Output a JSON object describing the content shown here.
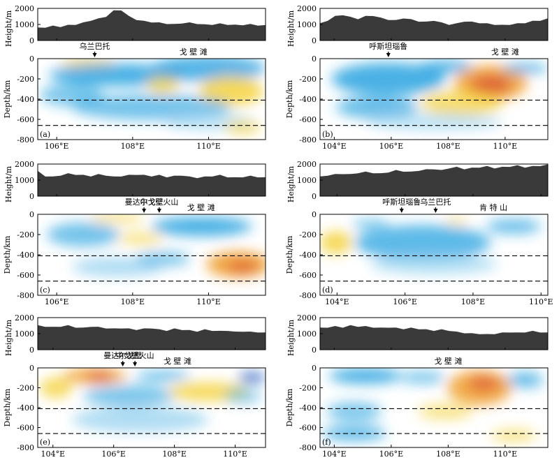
{
  "figure": {
    "height_label": "Height/m",
    "depth_label": "Depth/km",
    "height_ticks": [
      "2000",
      "1000",
      "0"
    ],
    "depth_ticks": [
      "0",
      "-200",
      "-400",
      "-600",
      "-800"
    ]
  },
  "chart_data": [
    {
      "type": "heatmap",
      "panel": "(a)",
      "xlabel": "",
      "x_ticks": [
        "106°E",
        "108°E",
        "110°E"
      ],
      "x_range": [
        105.5,
        111.5
      ],
      "height_range_m": [
        0,
        2000
      ],
      "depth_range_km": [
        0,
        -800
      ],
      "reference_depths_km": [
        -410,
        -660
      ],
      "annotations": [
        {
          "text": "乌兰巴托",
          "x": 107.0,
          "arrow": true
        },
        {
          "text": "戈 壁 滩",
          "x": 109.6,
          "arrow": false
        }
      ],
      "topography_m": [
        780,
        820,
        900,
        860,
        950,
        1000,
        1100,
        1250,
        1350,
        1500,
        1850,
        1900,
        1500,
        1300,
        1200,
        1150,
        1100,
        1050,
        1000,
        1080,
        1100,
        1050,
        980,
        1000,
        1040,
        1000,
        960,
        980,
        1000,
        950,
        930
      ]
    },
    {
      "type": "heatmap",
      "panel": "(b)",
      "x_ticks": [
        "104°E",
        "106°E",
        "108°E",
        "110°E"
      ],
      "x_range": [
        103.5,
        111.5
      ],
      "height_range_m": [
        0,
        2000
      ],
      "depth_range_km": [
        0,
        -800
      ],
      "reference_depths_km": [
        -410,
        -660
      ],
      "annotations": [
        {
          "text": "呼斯坦瑙鲁",
          "x": 105.9,
          "arrow": true
        },
        {
          "text": "戈 壁 滩",
          "x": 110.0,
          "arrow": false
        }
      ],
      "topography_m": [
        1050,
        1250,
        1500,
        1600,
        1450,
        1350,
        1500,
        1550,
        1400,
        1300,
        1250,
        1400,
        1300,
        1200,
        1150,
        1250,
        1100,
        1000,
        1050,
        1200,
        1150,
        1100,
        1050,
        1000,
        950,
        1000,
        1050,
        1100,
        1200,
        1250,
        1350
      ]
    },
    {
      "type": "heatmap",
      "panel": "(c)",
      "x_ticks": [
        "106°E",
        "108°E",
        "110°E"
      ],
      "x_range": [
        105.5,
        111.5
      ],
      "height_range_m": [
        0,
        2000
      ],
      "depth_range_km": [
        0,
        -800
      ],
      "reference_depths_km": [
        -410,
        -660
      ],
      "annotations": [
        {
          "text": "曼达尔戈壁",
          "x": 108.3,
          "arrow": true
        },
        {
          "text": "中戈壁火山",
          "x": 108.7,
          "arrow": true
        },
        {
          "text": "戈 壁 滩",
          "x": 109.8,
          "arrow": false
        }
      ],
      "topography_m": [
        1550,
        1250,
        1200,
        1300,
        1400,
        1350,
        1300,
        1250,
        1350,
        1300,
        1200,
        1250,
        1300,
        1350,
        1300,
        1250,
        1300,
        1200,
        1250,
        1300,
        1200,
        1150,
        1200,
        1250,
        1300,
        1200,
        1150,
        1200,
        1250,
        1200,
        1150
      ]
    },
    {
      "type": "heatmap",
      "panel": "(d)",
      "x_ticks": [
        "104°E",
        "106°E",
        "108°E",
        "110°E"
      ],
      "x_range": [
        103.5,
        110.2
      ],
      "height_range_m": [
        0,
        2000
      ],
      "depth_range_km": [
        0,
        -800
      ],
      "reference_depths_km": [
        -410,
        -660
      ],
      "annotations": [
        {
          "text": "呼斯坦瑙鲁",
          "x": 105.9,
          "arrow": true
        },
        {
          "text": "乌兰巴托",
          "x": 106.9,
          "arrow": true
        },
        {
          "text": "肯 特 山",
          "x": 108.6,
          "arrow": false
        }
      ],
      "topography_m": [
        1200,
        1300,
        1350,
        1400,
        1350,
        1450,
        1500,
        1450,
        1400,
        1500,
        1600,
        1550,
        1500,
        1600,
        1650,
        1700,
        1600,
        1750,
        1800,
        1700,
        1750,
        1800,
        1850,
        1750,
        1800,
        1850,
        1900,
        1800,
        1850,
        1900,
        1950
      ]
    },
    {
      "type": "heatmap",
      "panel": "(e)",
      "x_ticks": [
        "104°E",
        "106°E",
        "108°E",
        "110°E"
      ],
      "x_range": [
        103.5,
        111.0
      ],
      "height_range_m": [
        0,
        2000
      ],
      "depth_range_km": [
        0,
        -800
      ],
      "reference_depths_km": [
        -410,
        -660
      ],
      "annotations": [
        {
          "text": "曼达尔戈壁",
          "x": 106.3,
          "arrow": true
        },
        {
          "text": "中戈壁火山",
          "x": 106.7,
          "arrow": true
        },
        {
          "text": "戈 壁 滩",
          "x": 108.1,
          "arrow": false
        }
      ],
      "topography_m": [
        1500,
        1450,
        1400,
        1450,
        1500,
        1400,
        1350,
        1450,
        1400,
        1350,
        1300,
        1350,
        1300,
        1250,
        1300,
        1350,
        1250,
        1200,
        1300,
        1250,
        1200,
        1150,
        1250,
        1200,
        1150,
        1200,
        1100,
        1150,
        1100,
        1100,
        1050
      ]
    },
    {
      "type": "heatmap",
      "panel": "(f)",
      "x_ticks": [
        "104°E",
        "106°E",
        "108°E",
        "110°E"
      ],
      "x_range": [
        103.5,
        111.5
      ],
      "height_range_m": [
        0,
        2000
      ],
      "depth_range_km": [
        0,
        -800
      ],
      "reference_depths_km": [
        -410,
        -660
      ],
      "annotations": [
        {
          "text": "戈 壁 滩",
          "x": 108.0,
          "arrow": false
        }
      ],
      "topography_m": [
        1350,
        1400,
        1450,
        1400,
        1500,
        1450,
        1450,
        1400,
        1350,
        1400,
        1350,
        1300,
        1350,
        1300,
        1250,
        1200,
        1250,
        1200,
        1100,
        1050,
        1000,
        1000,
        950,
        1000,
        1050,
        1100,
        1050,
        1100,
        1150,
        1100,
        1050
      ]
    }
  ]
}
